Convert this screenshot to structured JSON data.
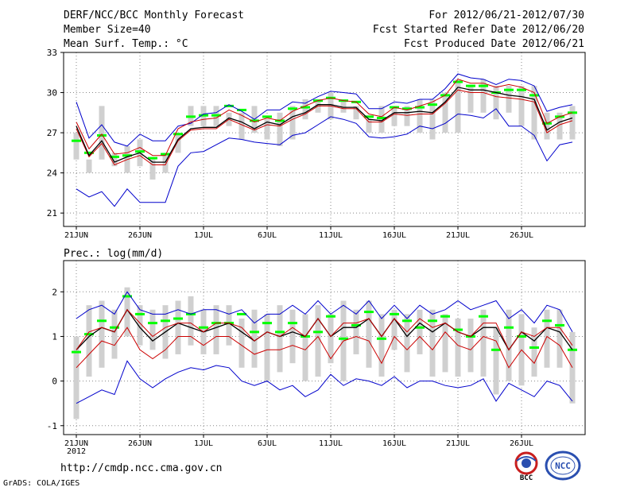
{
  "header": {
    "title": "DERF/NCC/BCC Monthly Forecast",
    "member_size": "Member Size=40",
    "variable": "Mean Surf. Temp.: °C",
    "forecast_period": "For 2012/06/21-2012/07/30",
    "refer_date": "Fcst Started Refer Date 2012/06/20",
    "produced_date": "Fcst Produced Date 2012/06/21"
  },
  "footer": {
    "url": "http://cmdp.ncc.cma.gov.cn",
    "credit": "GrADS: COLA/IGES",
    "logo_bcc": "BCC",
    "logo_ncc": "NCC"
  },
  "colors": {
    "ensemble_max_min": "#0000cc",
    "p90_p10": "#cc0000",
    "mean": "#000000",
    "median": "#00ff00",
    "range_bar": "#d0d0d0",
    "grid": "#888888"
  },
  "chart_data": [
    {
      "type": "line",
      "title": "Mean Surf. Temp.: °C",
      "x_tick_labels": [
        "21JUN",
        "26JUN",
        "1JUL",
        "6JUL",
        "11JUL",
        "16JUL",
        "21JUL",
        "26JUL"
      ],
      "x_tick_days": [
        1,
        6,
        11,
        16,
        21,
        26,
        31,
        36
      ],
      "year_label": "2012",
      "ylim": [
        20,
        33
      ],
      "y_ticks": [
        21,
        24,
        27,
        30,
        33
      ],
      "days": [
        1,
        2,
        3,
        4,
        5,
        6,
        7,
        8,
        9,
        10,
        11,
        12,
        13,
        14,
        15,
        16,
        17,
        18,
        19,
        20,
        21,
        22,
        23,
        24,
        25,
        26,
        27,
        28,
        29,
        30,
        31,
        32,
        33,
        34,
        35,
        36,
        37,
        38,
        39,
        40
      ],
      "series": [
        {
          "name": "max",
          "values": [
            29.3,
            26.6,
            27.6,
            26.3,
            26.0,
            26.9,
            26.4,
            26.4,
            27.5,
            27.7,
            28.4,
            28.5,
            29.1,
            28.6,
            28.0,
            28.7,
            28.7,
            29.3,
            29.2,
            29.7,
            30.1,
            30.0,
            29.9,
            28.8,
            28.8,
            29.3,
            29.2,
            29.5,
            29.5,
            30.3,
            31.4,
            31.1,
            31.0,
            30.6,
            31.0,
            30.9,
            30.5,
            28.6,
            28.9,
            29.1
          ]
        },
        {
          "name": "p90",
          "values": [
            27.8,
            25.8,
            26.9,
            25.4,
            25.5,
            25.9,
            25.3,
            25.3,
            27.3,
            27.8,
            28.0,
            28.1,
            28.7,
            28.3,
            27.8,
            28.1,
            27.9,
            28.6,
            29.0,
            29.4,
            29.6,
            29.4,
            29.3,
            28.4,
            28.2,
            28.9,
            28.7,
            29.0,
            29.3,
            29.8,
            31.0,
            30.7,
            30.7,
            30.4,
            30.6,
            30.4,
            30.0,
            27.7,
            28.2,
            28.5
          ]
        },
        {
          "name": "mean",
          "values": [
            27.5,
            25.3,
            26.4,
            24.8,
            25.2,
            25.5,
            24.8,
            24.8,
            26.5,
            27.3,
            27.4,
            27.4,
            28.1,
            27.8,
            27.3,
            27.8,
            27.6,
            28.2,
            28.5,
            29.1,
            29.1,
            28.9,
            28.9,
            28.0,
            27.9,
            28.5,
            28.5,
            28.6,
            28.5,
            29.3,
            30.4,
            30.2,
            30.2,
            30.0,
            29.8,
            29.7,
            29.5,
            27.2,
            27.8,
            28.1
          ]
        },
        {
          "name": "median",
          "values": [
            26.4,
            25.5,
            26.8,
            25.2,
            25.3,
            25.6,
            25.1,
            25.4,
            26.9,
            28.2,
            28.3,
            28.3,
            29.0,
            28.7,
            27.9,
            28.2,
            27.9,
            28.8,
            28.9,
            29.4,
            29.6,
            29.4,
            29.3,
            28.2,
            28.1,
            28.9,
            28.8,
            28.9,
            29.1,
            29.8,
            30.8,
            30.5,
            30.5,
            30.0,
            30.2,
            30.2,
            29.8,
            27.7,
            28.2,
            28.5
          ]
        },
        {
          "name": "p10",
          "values": [
            27.3,
            25.2,
            26.2,
            24.6,
            25.0,
            25.3,
            24.6,
            24.6,
            26.4,
            27.2,
            27.3,
            27.3,
            28.0,
            27.6,
            27.2,
            27.6,
            27.5,
            28.0,
            28.4,
            29.0,
            29.0,
            28.8,
            28.8,
            27.8,
            27.8,
            28.4,
            28.3,
            28.4,
            28.4,
            29.2,
            30.2,
            30.0,
            30.0,
            29.7,
            29.6,
            29.5,
            29.3,
            27.0,
            27.6,
            27.9
          ]
        },
        {
          "name": "min",
          "values": [
            22.8,
            22.2,
            22.6,
            21.5,
            22.8,
            21.8,
            21.8,
            21.8,
            24.5,
            25.5,
            25.6,
            26.1,
            26.6,
            26.5,
            26.3,
            26.2,
            26.1,
            26.8,
            27.0,
            27.6,
            28.2,
            28.0,
            27.7,
            26.7,
            26.6,
            26.7,
            26.9,
            27.5,
            27.3,
            27.7,
            28.4,
            28.3,
            28.1,
            28.8,
            27.5,
            27.5,
            26.8,
            24.9,
            26.1,
            26.3
          ]
        },
        {
          "name": "range_top",
          "values": [
            27.0,
            25.0,
            29.0,
            25.5,
            26.0,
            26.5,
            25.0,
            25.5,
            27.0,
            29.0,
            29.0,
            29.0,
            28.5,
            28.5,
            29.0,
            28.0,
            28.5,
            29.0,
            29.5,
            29.5,
            30.0,
            29.5,
            29.0,
            28.0,
            29.0,
            29.0,
            29.0,
            29.5,
            29.5,
            30.0,
            31.0,
            30.5,
            31.0,
            30.5,
            30.5,
            30.5,
            30.5,
            28.5,
            28.5,
            29.0
          ]
        },
        {
          "name": "range_bottom",
          "values": [
            25.0,
            24.0,
            25.0,
            24.5,
            24.0,
            24.5,
            23.5,
            24.0,
            25.5,
            27.5,
            27.5,
            27.5,
            27.5,
            26.5,
            27.0,
            26.5,
            26.0,
            26.5,
            28.0,
            28.5,
            28.0,
            28.5,
            28.0,
            27.0,
            27.0,
            27.5,
            27.5,
            27.0,
            26.5,
            27.0,
            27.0,
            28.5,
            28.5,
            28.0,
            28.5,
            27.5,
            26.5,
            26.5,
            26.5,
            26.5
          ]
        }
      ]
    },
    {
      "type": "line",
      "title": "Prec.: log(mm/d)",
      "x_tick_labels": [
        "21JUN",
        "26JUN",
        "1JUL",
        "6JUL",
        "11JUL",
        "16JUL",
        "21JUL",
        "26JUL"
      ],
      "x_tick_days": [
        1,
        6,
        11,
        16,
        21,
        26,
        31,
        36
      ],
      "year_label": "2012",
      "ylim": [
        -1.2,
        2.7
      ],
      "y_ticks": [
        -1,
        0,
        1,
        2
      ],
      "days": [
        1,
        2,
        3,
        4,
        5,
        6,
        7,
        8,
        9,
        10,
        11,
        12,
        13,
        14,
        15,
        16,
        17,
        18,
        19,
        20,
        21,
        22,
        23,
        24,
        25,
        26,
        27,
        28,
        29,
        30,
        31,
        32,
        33,
        34,
        35,
        36,
        37,
        38,
        39,
        40
      ],
      "series": [
        {
          "name": "max",
          "values": [
            1.4,
            1.6,
            1.7,
            1.5,
            2.0,
            1.6,
            1.5,
            1.5,
            1.6,
            1.5,
            1.6,
            1.6,
            1.5,
            1.6,
            1.3,
            1.5,
            1.5,
            1.7,
            1.5,
            1.8,
            1.5,
            1.7,
            1.5,
            1.8,
            1.4,
            1.7,
            1.4,
            1.7,
            1.5,
            1.6,
            1.8,
            1.6,
            1.7,
            1.8,
            1.4,
            1.6,
            1.3,
            1.7,
            1.6,
            1.1
          ]
        },
        {
          "name": "p90",
          "values": [
            0.7,
            1.1,
            1.2,
            1.1,
            1.6,
            1.3,
            1.0,
            1.2,
            1.3,
            1.3,
            1.1,
            1.3,
            1.3,
            1.2,
            0.9,
            1.1,
            1.0,
            1.2,
            1.0,
            1.4,
            1.0,
            1.3,
            1.3,
            1.4,
            1.0,
            1.4,
            1.1,
            1.4,
            1.2,
            1.3,
            1.1,
            1.0,
            1.3,
            1.3,
            0.7,
            1.1,
            1.0,
            1.2,
            1.2,
            0.8
          ]
        },
        {
          "name": "mean",
          "values": [
            0.7,
            1.0,
            1.2,
            1.1,
            1.6,
            1.2,
            0.9,
            1.1,
            1.3,
            1.2,
            1.1,
            1.2,
            1.3,
            1.1,
            0.9,
            1.1,
            1.0,
            1.1,
            1.0,
            1.4,
            1.0,
            1.2,
            1.2,
            1.4,
            1.0,
            1.4,
            1.0,
            1.3,
            1.1,
            1.3,
            1.1,
            1.0,
            1.2,
            1.2,
            0.7,
            1.1,
            0.9,
            1.2,
            1.1,
            0.7
          ]
        },
        {
          "name": "median",
          "values": [
            0.65,
            1.05,
            1.35,
            1.2,
            1.9,
            1.5,
            1.3,
            1.35,
            1.4,
            1.5,
            1.2,
            1.3,
            1.3,
            1.5,
            1.1,
            1.3,
            1.1,
            1.3,
            1.0,
            1.1,
            1.45,
            0.95,
            1.25,
            1.55,
            0.95,
            1.5,
            1.35,
            1.2,
            1.35,
            1.45,
            1.15,
            1.0,
            1.45,
            0.7,
            1.2,
            1.0,
            0.75,
            1.35,
            1.25,
            0.7
          ]
        },
        {
          "name": "p10",
          "values": [
            0.3,
            0.6,
            0.9,
            0.8,
            1.2,
            0.7,
            0.5,
            0.7,
            1.0,
            1.0,
            0.8,
            1.0,
            1.0,
            0.8,
            0.6,
            0.7,
            0.7,
            0.8,
            0.7,
            1.0,
            0.5,
            0.9,
            1.0,
            0.9,
            0.4,
            1.0,
            0.7,
            1.0,
            0.7,
            1.1,
            0.8,
            0.7,
            1.0,
            0.9,
            0.3,
            0.7,
            0.4,
            1.0,
            0.8,
            0.3
          ]
        },
        {
          "name": "min",
          "values": [
            -0.5,
            -0.35,
            -0.2,
            -0.3,
            0.45,
            0.05,
            -0.15,
            0.05,
            0.2,
            0.3,
            0.25,
            0.35,
            0.3,
            0.0,
            -0.1,
            0.0,
            -0.2,
            -0.1,
            -0.35,
            -0.2,
            0.15,
            -0.1,
            0.05,
            0.0,
            -0.1,
            0.1,
            -0.15,
            0.0,
            0.0,
            -0.1,
            -0.15,
            -0.1,
            0.05,
            -0.45,
            -0.05,
            -0.2,
            -0.35,
            0.0,
            -0.1,
            -0.45
          ]
        },
        {
          "name": "range_top",
          "values": [
            1.0,
            1.7,
            1.8,
            1.6,
            2.1,
            1.7,
            1.6,
            1.7,
            1.8,
            1.9,
            1.6,
            1.7,
            1.7,
            1.4,
            1.6,
            1.5,
            1.7,
            1.6,
            1.5,
            1.7,
            1.5,
            1.8,
            1.6,
            1.8,
            1.5,
            1.6,
            1.5,
            1.6,
            1.6,
            1.5,
            1.4,
            1.4,
            1.6,
            1.2,
            1.6,
            1.5,
            1.2,
            1.6,
            1.6,
            1.1
          ]
        },
        {
          "name": "range_bottom",
          "values": [
            -0.85,
            0.1,
            0.3,
            0.5,
            1.0,
            0.8,
            0.7,
            0.5,
            0.6,
            0.8,
            0.6,
            0.6,
            0.8,
            0.3,
            0.3,
            0.0,
            0.2,
            0.4,
            0.0,
            0.1,
            0.4,
            0.0,
            0.6,
            0.3,
            0.1,
            0.7,
            0.2,
            0.6,
            0.1,
            0.2,
            0.1,
            0.2,
            0.1,
            -0.3,
            0.0,
            -0.1,
            0.1,
            0.3,
            0.3,
            -0.5
          ]
        }
      ]
    }
  ]
}
